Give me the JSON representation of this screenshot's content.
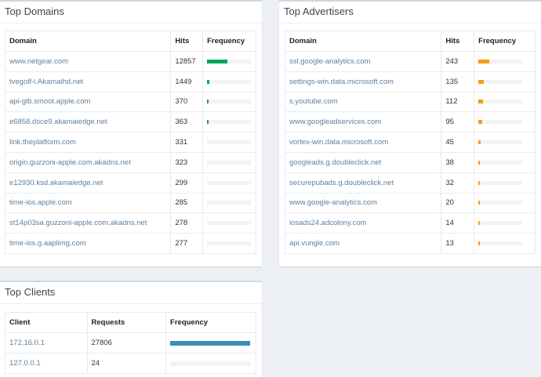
{
  "top_domains": {
    "title": "Top Domains",
    "headers": {
      "domain": "Domain",
      "hits": "Hits",
      "frequency": "Frequency"
    },
    "rows": [
      {
        "domain": "www.netgear.com",
        "hits": "12857",
        "freq": 0.46
      },
      {
        "domain": "tvegolf-i.Akamaihd.net",
        "hits": "1449",
        "freq": 0.05
      },
      {
        "domain": "api-glb.smoot.apple.com",
        "hits": "370",
        "freq": 0.015
      },
      {
        "domain": "e6858.dsce9.akamaiedge.net",
        "hits": "363",
        "freq": 0.015
      },
      {
        "domain": "link.theplatform.com",
        "hits": "331",
        "freq": 0.0
      },
      {
        "domain": "origin.guzzoni-apple.com.akadns.net",
        "hits": "323",
        "freq": 0.0
      },
      {
        "domain": "e12930.ksd.akamaiedge.net",
        "hits": "299",
        "freq": 0.0
      },
      {
        "domain": "time-ios.apple.com",
        "hits": "285",
        "freq": 0.0
      },
      {
        "domain": "st14p03sa.guzzoni-apple.com.akadns.net",
        "hits": "278",
        "freq": 0.0
      },
      {
        "domain": "time-ios.g.aaplimg.com",
        "hits": "277",
        "freq": 0.0
      }
    ]
  },
  "top_advertisers": {
    "title": "Top Advertisers",
    "headers": {
      "domain": "Domain",
      "hits": "Hits",
      "frequency": "Frequency"
    },
    "rows": [
      {
        "domain": "ssl.google-analytics.com",
        "hits": "243",
        "freq": 0.24
      },
      {
        "domain": "settings-win.data.microsoft.com",
        "hits": "135",
        "freq": 0.13
      },
      {
        "domain": "s.youtube.com",
        "hits": "112",
        "freq": 0.11
      },
      {
        "domain": "www.googleadservices.com",
        "hits": "95",
        "freq": 0.09
      },
      {
        "domain": "vortex-win.data.microsoft.com",
        "hits": "45",
        "freq": 0.045
      },
      {
        "domain": "googleads.g.doubleclick.net",
        "hits": "38",
        "freq": 0.038
      },
      {
        "domain": "securepubads.g.doubleclick.net",
        "hits": "32",
        "freq": 0.032
      },
      {
        "domain": "www.google-analytics.com",
        "hits": "20",
        "freq": 0.02
      },
      {
        "domain": "iosads24.adcolony.com",
        "hits": "14",
        "freq": 0.014
      },
      {
        "domain": "api.vungle.com",
        "hits": "13",
        "freq": 0.013
      }
    ]
  },
  "top_clients": {
    "title": "Top Clients",
    "headers": {
      "client": "Client",
      "requests": "Requests",
      "frequency": "Frequency"
    },
    "rows": [
      {
        "client": "172.16.0.1",
        "requests": "27806",
        "freq": 1.0
      },
      {
        "client": "127.0.0.1",
        "requests": "24",
        "freq": 0.0
      }
    ]
  },
  "colors": {
    "domains_bar": "#00a65a",
    "advertisers_bar": "#f39c12",
    "clients_bar": "#3c8dbc"
  }
}
